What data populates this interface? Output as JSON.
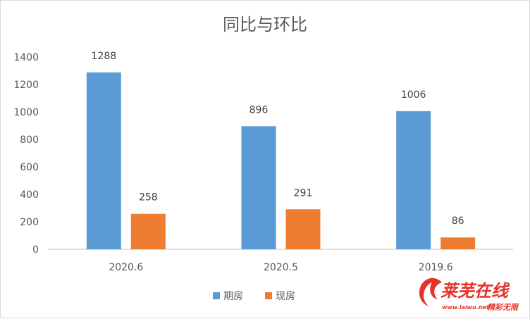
{
  "chart_data": {
    "type": "bar",
    "title": "同比与环比",
    "categories": [
      "2020.6",
      "2020.5",
      "2019.6"
    ],
    "series": [
      {
        "name": "期房",
        "values": [
          1288,
          896,
          1006
        ],
        "color": "#5b9bd5"
      },
      {
        "name": "现房",
        "values": [
          258,
          291,
          86
        ],
        "color": "#ed7d31"
      }
    ],
    "ylim": [
      0,
      1400
    ],
    "yticks": [
      "0",
      "200",
      "400",
      "600",
      "800",
      "1000",
      "1200",
      "1400"
    ],
    "legend_position": "bottom",
    "grid": false
  },
  "watermark": {
    "brand": "莱芜在线",
    "url": "www.laiwu.net",
    "slogan": "精彩无限",
    "color": "#e8312a"
  }
}
